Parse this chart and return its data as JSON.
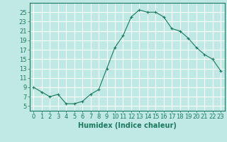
{
  "x": [
    0,
    1,
    2,
    3,
    4,
    5,
    6,
    7,
    8,
    9,
    10,
    11,
    12,
    13,
    14,
    15,
    16,
    17,
    18,
    19,
    20,
    21,
    22,
    23
  ],
  "y": [
    9,
    8,
    7,
    7.5,
    5.5,
    5.5,
    6,
    7.5,
    8.5,
    13,
    17.5,
    20,
    24,
    25.5,
    25,
    25,
    24,
    21.5,
    21,
    19.5,
    17.5,
    16,
    15,
    12.5
  ],
  "line_color": "#1a7a5e",
  "marker": "+",
  "bg_color": "#c0e8e4",
  "grid_color": "#ffffff",
  "xlabel": "Humidex (Indice chaleur)",
  "xlabel_fontsize": 7,
  "tick_fontsize": 6,
  "ylim": [
    4,
    27
  ],
  "xlim": [
    -0.5,
    23.5
  ],
  "yticks": [
    5,
    7,
    9,
    11,
    13,
    15,
    17,
    19,
    21,
    23,
    25
  ],
  "xticks": [
    0,
    1,
    2,
    3,
    4,
    5,
    6,
    7,
    8,
    9,
    10,
    11,
    12,
    13,
    14,
    15,
    16,
    17,
    18,
    19,
    20,
    21,
    22,
    23
  ]
}
